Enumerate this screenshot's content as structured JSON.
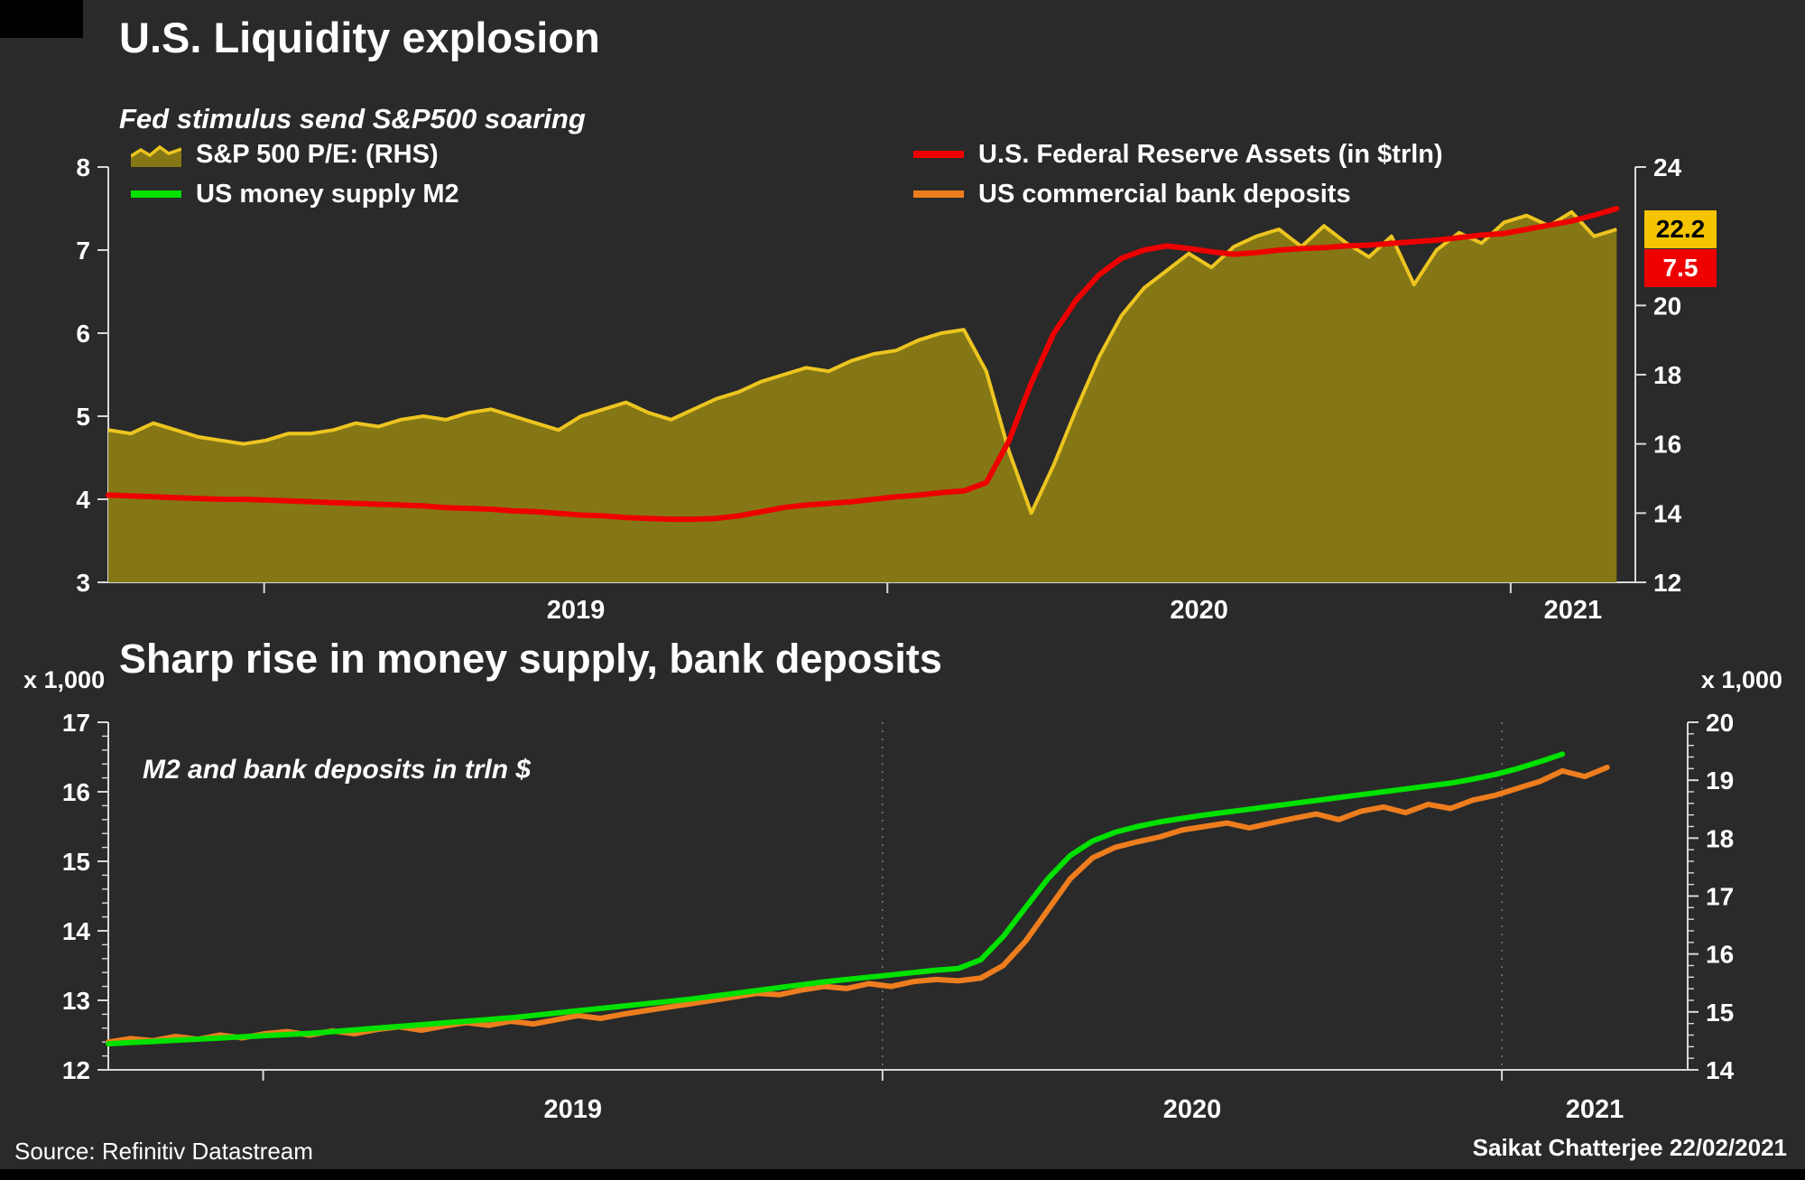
{
  "page": {
    "background": "#2a2a2a",
    "text_color": "#ffffff",
    "axis_color": "#d9d9d9"
  },
  "footer": {
    "source": "Source: Refinitiv Datastream",
    "credit": "Saikat Chatterjee 22/02/2021"
  },
  "chart_data": [
    {
      "type": "area+line",
      "title": "U.S. Liquidity explosion",
      "subtitle": "Fed stimulus send S&P500 soaring",
      "x_start": 2018.75,
      "x_end": 2021.17,
      "x_axis": {
        "domain": [
          2018.75,
          2021.2
        ],
        "year_labels": [
          2019,
          2020,
          2021
        ],
        "gridline_years": []
      },
      "left_axis": {
        "range": [
          3,
          8
        ],
        "ticks": [
          3,
          4,
          5,
          6,
          7,
          8
        ]
      },
      "right_axis": {
        "range": [
          12,
          24
        ],
        "ticks": [
          12,
          14,
          16,
          18,
          20,
          24
        ]
      },
      "legend": [
        {
          "label": "S&P 500 P/E: (RHS)",
          "type": "area",
          "color": "#edc520",
          "fill": "#857715"
        },
        {
          "label": "US money supply M2",
          "type": "line",
          "color": "#00e100"
        },
        {
          "label": "U.S. Federal Reserve Assets (in $trln)",
          "type": "line",
          "color": "#ee0000"
        },
        {
          "label": "US commercial bank deposits",
          "type": "line",
          "color": "#ee7d1e"
        }
      ],
      "badges": [
        {
          "value": "22.2",
          "bg": "#f5c400",
          "fg": "#000000"
        },
        {
          "value": "7.5",
          "bg": "#ee0000",
          "fg": "#ffffff"
        }
      ],
      "series": [
        {
          "name": "S&P 500 P/E: (RHS)",
          "type": "area",
          "axis": "right",
          "line_color": "#edc520",
          "fill_color": "#857715",
          "values": [
            16.4,
            16.3,
            16.6,
            16.4,
            16.2,
            16.1,
            16.0,
            16.1,
            16.3,
            16.3,
            16.4,
            16.6,
            16.5,
            16.7,
            16.8,
            16.7,
            16.9,
            17.0,
            16.8,
            16.6,
            16.4,
            16.8,
            17.0,
            17.2,
            16.9,
            16.7,
            17.0,
            17.3,
            17.5,
            17.8,
            18.0,
            18.2,
            18.1,
            18.4,
            18.6,
            18.7,
            19.0,
            19.2,
            19.3,
            18.1,
            15.8,
            14.0,
            15.4,
            17.0,
            18.5,
            19.7,
            20.5,
            21.0,
            21.5,
            21.1,
            21.7,
            22.0,
            22.2,
            21.7,
            22.3,
            21.8,
            21.4,
            22.0,
            20.6,
            21.6,
            22.1,
            21.8,
            22.4,
            22.6,
            22.3,
            22.7,
            22.0,
            22.2
          ]
        },
        {
          "name": "U.S. Federal Reserve Assets (in $trln)",
          "type": "line",
          "axis": "left",
          "line_color": "#ee0000",
          "values": [
            4.05,
            4.04,
            4.03,
            4.02,
            4.01,
            4.0,
            4.0,
            3.99,
            3.98,
            3.97,
            3.96,
            3.95,
            3.94,
            3.93,
            3.92,
            3.9,
            3.89,
            3.88,
            3.86,
            3.85,
            3.83,
            3.81,
            3.8,
            3.78,
            3.77,
            3.76,
            3.76,
            3.77,
            3.8,
            3.85,
            3.9,
            3.93,
            3.95,
            3.97,
            4.0,
            4.03,
            4.05,
            4.08,
            4.1,
            4.2,
            4.7,
            5.4,
            6.0,
            6.4,
            6.7,
            6.9,
            7.0,
            7.05,
            7.02,
            6.98,
            6.95,
            6.97,
            7.0,
            7.02,
            7.03,
            7.05,
            7.06,
            7.08,
            7.1,
            7.12,
            7.15,
            7.18,
            7.2,
            7.25,
            7.3,
            7.35,
            7.42,
            7.5
          ]
        }
      ]
    },
    {
      "type": "line",
      "title": "Sharp rise in money supply, bank deposits",
      "annotation": "M2 and bank deposits in trln $",
      "unit_left": "x 1,000",
      "unit_right": "x 1,000",
      "x_start": 2018.75,
      "x_end": 2021.17,
      "x_axis": {
        "domain": [
          2018.75,
          2021.3
        ],
        "year_labels": [
          2019,
          2020,
          2021
        ],
        "gridline_years": [
          2020,
          2021
        ]
      },
      "left_axis": {
        "range": [
          12,
          17
        ],
        "ticks": [
          12,
          13,
          14,
          15,
          16,
          17
        ],
        "minor_step": 0.2
      },
      "right_axis": {
        "range": [
          14,
          20
        ],
        "ticks": [
          14,
          15,
          16,
          17,
          18,
          19,
          20
        ],
        "minor_step": 0.2
      },
      "series": [
        {
          "name": "US commercial bank deposits",
          "type": "line",
          "axis": "left",
          "line_color": "#ee7d1e",
          "values": [
            12.4,
            12.45,
            12.42,
            12.48,
            12.44,
            12.5,
            12.46,
            12.52,
            12.55,
            12.5,
            12.56,
            12.52,
            12.58,
            12.62,
            12.57,
            12.63,
            12.68,
            12.64,
            12.7,
            12.66,
            12.72,
            12.78,
            12.74,
            12.8,
            12.85,
            12.9,
            12.95,
            13.0,
            13.05,
            13.1,
            13.08,
            13.15,
            13.2,
            13.17,
            13.24,
            13.2,
            13.27,
            13.3,
            13.28,
            13.32,
            13.5,
            13.85,
            14.3,
            14.75,
            15.05,
            15.2,
            15.28,
            15.35,
            15.45,
            15.5,
            15.55,
            15.48,
            15.55,
            15.62,
            15.68,
            15.6,
            15.72,
            15.78,
            15.7,
            15.82,
            15.76,
            15.88,
            15.95,
            16.05,
            16.15,
            16.3,
            16.22,
            16.35
          ]
        },
        {
          "name": "US money supply M2",
          "type": "line",
          "axis": "right",
          "line_color": "#00e100",
          "values": [
            14.45,
            14.47,
            14.49,
            14.51,
            14.53,
            14.55,
            14.57,
            14.59,
            14.61,
            14.63,
            14.66,
            14.69,
            14.72,
            14.75,
            14.78,
            14.81,
            14.84,
            14.87,
            14.9,
            14.94,
            14.98,
            15.02,
            15.06,
            15.1,
            15.14,
            15.18,
            15.22,
            15.27,
            15.32,
            15.37,
            15.42,
            15.47,
            15.52,
            15.56,
            15.6,
            15.64,
            15.68,
            15.72,
            15.75,
            15.9,
            16.3,
            16.8,
            17.3,
            17.7,
            17.95,
            18.1,
            18.2,
            18.28,
            18.34,
            18.4,
            18.45,
            18.5,
            18.55,
            18.6,
            18.65,
            18.7,
            18.75,
            18.8,
            18.85,
            18.9,
            18.95,
            19.02,
            19.1,
            19.2,
            19.32,
            19.45,
            null,
            null
          ]
        }
      ]
    }
  ]
}
